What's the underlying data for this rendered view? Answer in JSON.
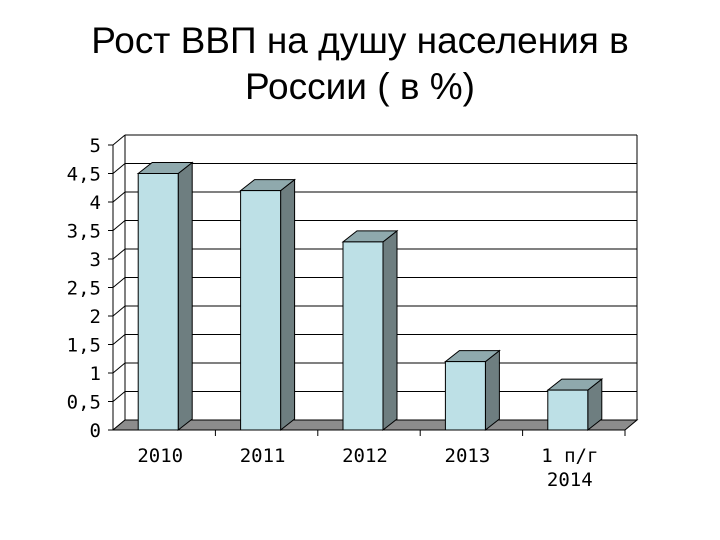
{
  "slide": {
    "title_line1": "Рост ВВП на душу населения в",
    "title_line2": "России ( в %)"
  },
  "chart_data": {
    "type": "bar",
    "style": "3d-column",
    "categories": [
      [
        "2010"
      ],
      [
        "2011"
      ],
      [
        "2012"
      ],
      [
        "2013"
      ],
      [
        "1 п/г",
        "2014"
      ]
    ],
    "values": [
      4.5,
      4.2,
      3.3,
      1.2,
      0.7
    ],
    "ylim": [
      0,
      5
    ],
    "ytick_labels": [
      "0",
      "0,5",
      "1",
      "1,5",
      "2",
      "2,5",
      "3",
      "3,5",
      "4",
      "4,5",
      "5"
    ],
    "title": "",
    "xlabel": "",
    "ylabel": "",
    "grid": true,
    "legend": "none",
    "colors": {
      "bar_front": "#bde0e6",
      "bar_side": "#6e7e80",
      "bar_top": "#8fa9ad",
      "floor": "#8c8c8c",
      "gridline": "#000000"
    }
  }
}
